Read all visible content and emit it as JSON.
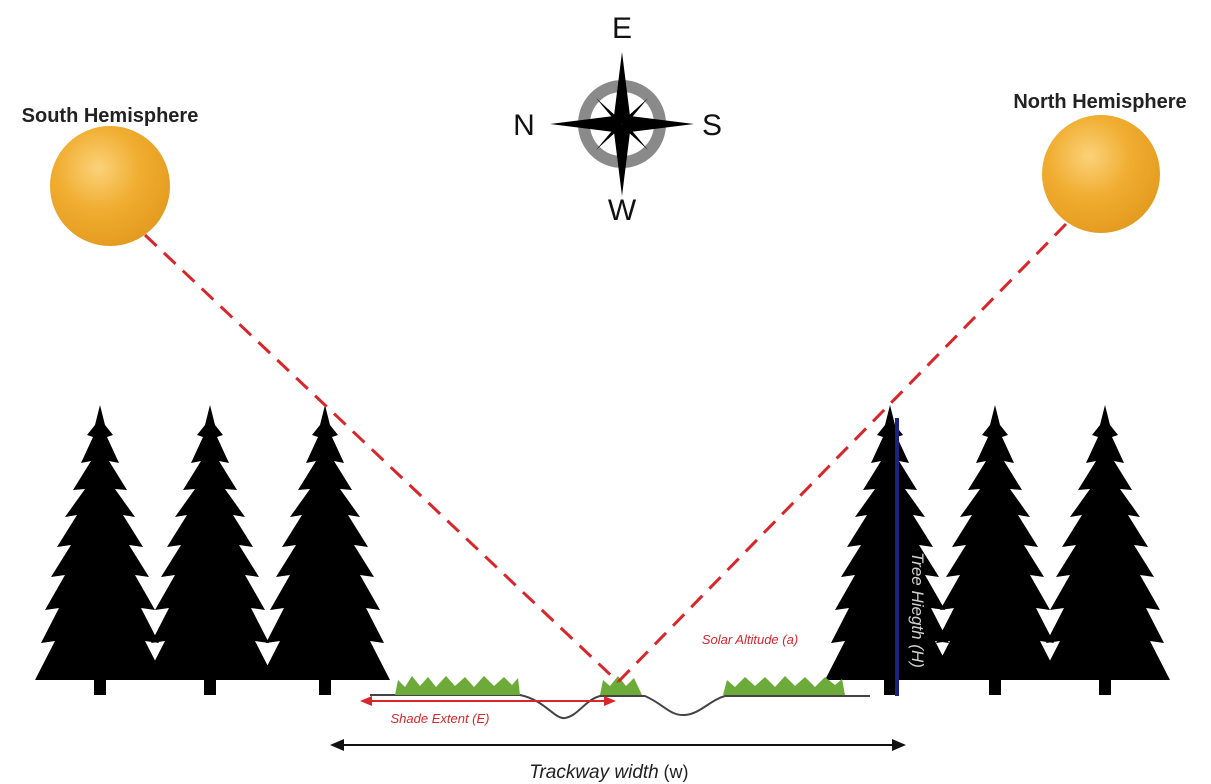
{
  "compass": {
    "east": "E",
    "north": "N",
    "south": "S",
    "west": "W"
  },
  "suns": {
    "left": "South Hemisphere",
    "right": "North Hemisphere"
  },
  "labels": {
    "solar_altitude": "Solar Altitude (a)",
    "tree_height": "Tree Hiegth (H)",
    "shade_extent": "Shade Extent (E)",
    "trackway": "Trackway width",
    "trackway_symbol": "(w)"
  }
}
